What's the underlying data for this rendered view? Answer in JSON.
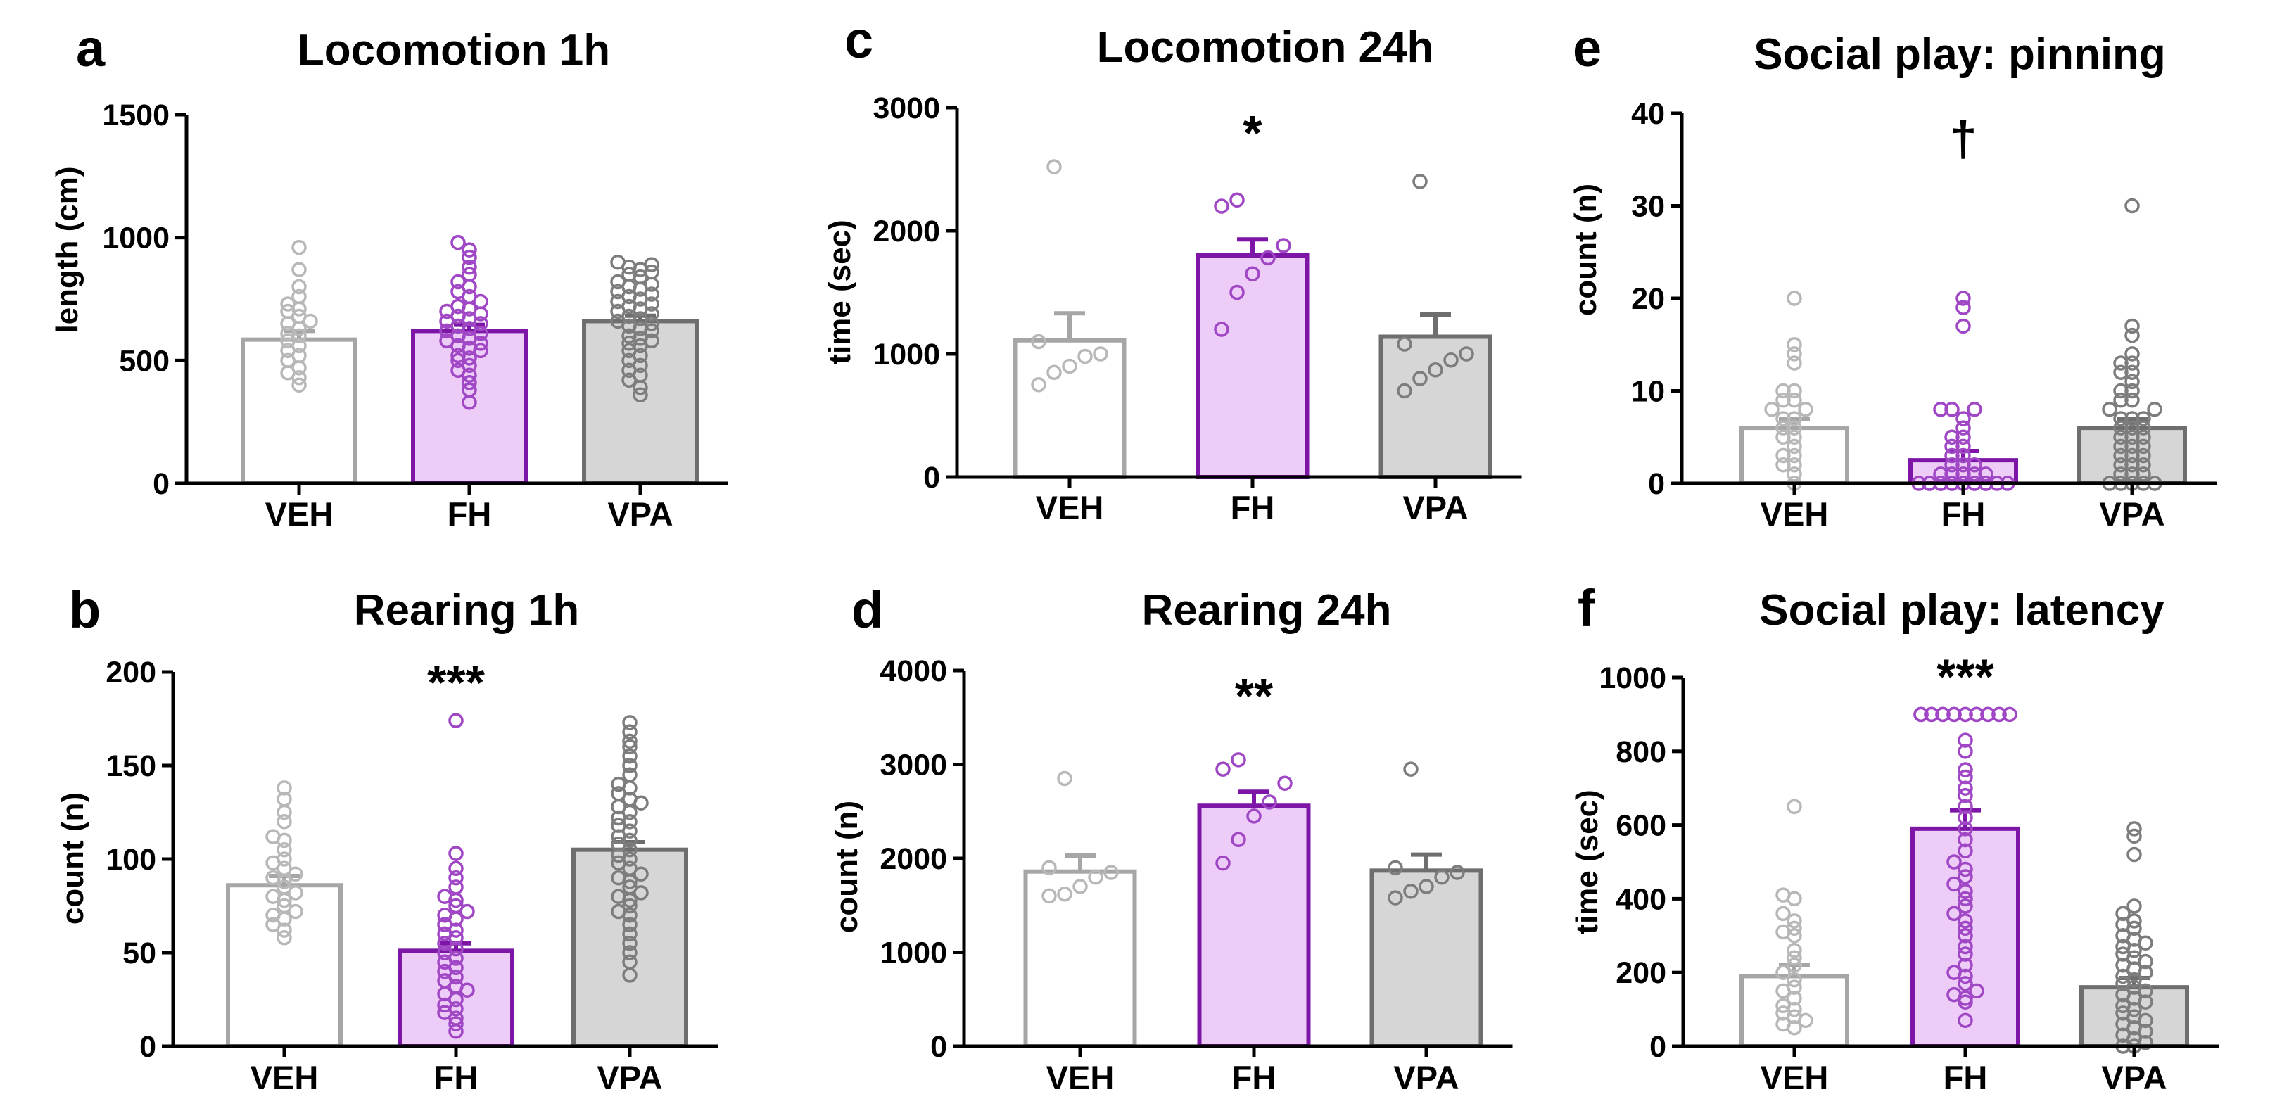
{
  "colors": {
    "VEH": {
      "stroke": "#a6a6a6",
      "fill": "#ffffff",
      "dot": "#b8b8b8"
    },
    "FH": {
      "stroke": "#7d16a6",
      "fill": "#edccf7",
      "dot": "#a047c6"
    },
    "VPA": {
      "stroke": "#6e6e6e",
      "fill": "#d6d6d6",
      "dot": "#7d7d7d"
    }
  },
  "chart_data": [
    {
      "panel": "a",
      "type": "bar",
      "title": "Locomotion 1h",
      "ylabel": "length (cm)",
      "xlabel": "",
      "categories": [
        "VEH",
        "FH",
        "VPA"
      ],
      "values": [
        585,
        620,
        660
      ],
      "sem": [
        35,
        25,
        22
      ],
      "ylim": [
        0,
        1500
      ],
      "yticks": [
        0,
        500,
        1000,
        1500
      ],
      "significance": [
        "",
        "",
        ""
      ],
      "points": [
        [
          400,
          430,
          450,
          470,
          500,
          520,
          540,
          560,
          580,
          600,
          610,
          630,
          650,
          660,
          680,
          700,
          710,
          730,
          760,
          800,
          870,
          960
        ],
        [
          330,
          380,
          410,
          440,
          460,
          480,
          500,
          510,
          520,
          540,
          550,
          560,
          570,
          580,
          590,
          600,
          610,
          620,
          630,
          640,
          650,
          660,
          670,
          680,
          690,
          700,
          710,
          720,
          740,
          760,
          780,
          800,
          820,
          850,
          880,
          920,
          950,
          980
        ],
        [
          360,
          390,
          420,
          440,
          460,
          480,
          500,
          520,
          540,
          560,
          570,
          580,
          590,
          600,
          620,
          630,
          640,
          650,
          660,
          670,
          680,
          690,
          700,
          710,
          720,
          730,
          740,
          750,
          760,
          770,
          780,
          790,
          800,
          810,
          820,
          840,
          850,
          860,
          870,
          880,
          890,
          900
        ]
      ]
    },
    {
      "panel": "b",
      "type": "bar",
      "title": "Rearing 1h",
      "ylabel": "count (n)",
      "xlabel": "",
      "categories": [
        "VEH",
        "FH",
        "VPA"
      ],
      "values": [
        86,
        51,
        105
      ],
      "sem": [
        5,
        4,
        4
      ],
      "ylim": [
        0,
        200
      ],
      "yticks": [
        0,
        50,
        100,
        150,
        200
      ],
      "significance": [
        "",
        "***",
        ""
      ],
      "points": [
        [
          58,
          62,
          65,
          68,
          70,
          72,
          75,
          78,
          80,
          82,
          85,
          88,
          90,
          92,
          95,
          98,
          100,
          105,
          110,
          112,
          120,
          125,
          132,
          138
        ],
        [
          8,
          12,
          15,
          18,
          20,
          22,
          25,
          28,
          30,
          32,
          35,
          37,
          40,
          42,
          45,
          47,
          50,
          52,
          55,
          58,
          60,
          62,
          65,
          68,
          70,
          72,
          75,
          78,
          80,
          85,
          90,
          95,
          103,
          174
        ],
        [
          38,
          45,
          50,
          55,
          60,
          65,
          70,
          72,
          75,
          78,
          80,
          82,
          85,
          88,
          90,
          92,
          95,
          98,
          100,
          102,
          105,
          108,
          110,
          112,
          115,
          118,
          120,
          122,
          125,
          128,
          130,
          132,
          135,
          138,
          140,
          145,
          150,
          155,
          160,
          163,
          168,
          173
        ]
      ]
    },
    {
      "panel": "c",
      "type": "bar",
      "title": "Locomotion 24h",
      "ylabel": "time (sec)",
      "xlabel": "",
      "categories": [
        "VEH",
        "FH",
        "VPA"
      ],
      "values": [
        1110,
        1800,
        1140
      ],
      "sem": [
        220,
        130,
        180
      ],
      "ylim": [
        0,
        3000
      ],
      "yticks": [
        0,
        1000,
        2000,
        3000
      ],
      "significance": [
        "",
        "*",
        ""
      ],
      "points": [
        [
          750,
          850,
          900,
          980,
          1000,
          1100,
          2520
        ],
        [
          1200,
          1500,
          1650,
          1780,
          1880,
          2200,
          2250
        ],
        [
          700,
          800,
          870,
          950,
          1000,
          1080,
          2400
        ]
      ]
    },
    {
      "panel": "d",
      "type": "bar",
      "title": "Rearing 24h",
      "ylabel": "count (n)",
      "xlabel": "",
      "categories": [
        "VEH",
        "FH",
        "VPA"
      ],
      "values": [
        1860,
        2560,
        1870
      ],
      "sem": [
        170,
        150,
        170
      ],
      "ylim": [
        0,
        4000
      ],
      "yticks": [
        0,
        1000,
        2000,
        3000,
        4000
      ],
      "significance": [
        "",
        "**",
        ""
      ],
      "points": [
        [
          1600,
          1620,
          1700,
          1800,
          1850,
          1900,
          2850
        ],
        [
          1950,
          2200,
          2450,
          2600,
          2800,
          2950,
          3050
        ],
        [
          1580,
          1650,
          1700,
          1800,
          1850,
          1900,
          2950
        ]
      ]
    },
    {
      "panel": "e",
      "type": "bar",
      "title": "Social play: pinning",
      "ylabel": "count (n)",
      "xlabel": "",
      "categories": [
        "VEH",
        "FH",
        "VPA"
      ],
      "values": [
        6,
        2.5,
        6
      ],
      "sem": [
        1,
        1,
        1
      ],
      "ylim": [
        0,
        40
      ],
      "yticks": [
        0,
        10,
        20,
        30,
        40
      ],
      "significance": [
        "",
        "†",
        ""
      ],
      "points": [
        [
          0,
          1,
          2,
          2,
          3,
          3,
          4,
          5,
          5,
          6,
          6,
          7,
          7,
          8,
          8,
          9,
          9,
          10,
          10,
          13,
          14,
          15,
          20
        ],
        [
          0,
          0,
          0,
          0,
          0,
          0,
          0,
          0,
          0,
          0,
          0,
          0,
          0,
          0,
          0,
          1,
          1,
          1,
          1,
          1,
          2,
          2,
          2,
          3,
          3,
          4,
          4,
          5,
          5,
          6,
          7,
          8,
          8,
          8,
          17,
          19,
          20
        ],
        [
          0,
          0,
          0,
          0,
          0,
          1,
          1,
          1,
          2,
          2,
          2,
          3,
          3,
          3,
          4,
          4,
          4,
          5,
          5,
          5,
          6,
          6,
          6,
          7,
          7,
          7,
          8,
          8,
          9,
          9,
          10,
          10,
          11,
          12,
          12,
          13,
          13,
          14,
          16,
          17,
          30
        ]
      ]
    },
    {
      "panel": "f",
      "type": "bar",
      "title": "Social play: latency",
      "ylabel": "time (sec)",
      "xlabel": "",
      "categories": [
        "VEH",
        "FH",
        "VPA"
      ],
      "values": [
        190,
        590,
        160
      ],
      "sem": [
        30,
        50,
        25
      ],
      "ylim": [
        0,
        1000
      ],
      "yticks": [
        0,
        200,
        400,
        600,
        800,
        1000
      ],
      "significance": [
        "",
        "***",
        ""
      ],
      "points": [
        [
          50,
          60,
          70,
          80,
          90,
          100,
          110,
          130,
          150,
          160,
          180,
          200,
          220,
          240,
          260,
          300,
          310,
          320,
          340,
          360,
          400,
          410,
          650
        ],
        [
          70,
          120,
          130,
          140,
          150,
          170,
          190,
          200,
          220,
          250,
          270,
          300,
          320,
          340,
          360,
          380,
          400,
          420,
          440,
          460,
          480,
          500,
          530,
          560,
          590,
          620,
          650,
          680,
          700,
          730,
          750,
          800,
          830,
          900,
          900,
          900,
          900,
          900,
          900,
          900,
          900,
          900,
          900,
          900,
          900,
          900,
          900,
          900,
          900,
          900
        ],
        [
          0,
          0,
          10,
          20,
          30,
          40,
          50,
          60,
          70,
          80,
          90,
          100,
          110,
          120,
          130,
          140,
          150,
          160,
          170,
          180,
          190,
          200,
          210,
          220,
          230,
          240,
          250,
          260,
          270,
          280,
          290,
          300,
          320,
          330,
          340,
          360,
          380,
          520,
          570,
          590
        ]
      ]
    }
  ]
}
